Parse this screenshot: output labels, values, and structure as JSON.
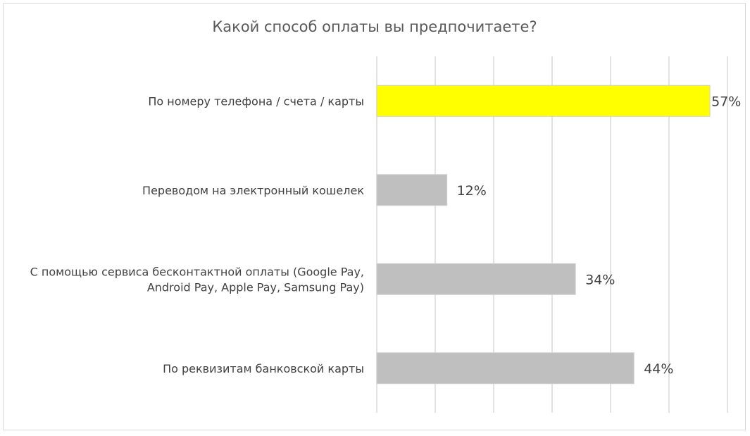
{
  "chart_data": {
    "type": "bar",
    "orientation": "horizontal",
    "title": "Какой способ оплаты вы предпочитаете?",
    "categories": [
      [
        "По номеру телефона / счета / карты"
      ],
      [
        "Переводом на электронный кошелек"
      ],
      [
        "С помощью сервиса бесконтактной оплаты (Google Pay,",
        "Android Pay, Apple Pay, Samsung Pay)"
      ],
      [
        "По реквизитам банковской карты"
      ]
    ],
    "values": [
      57,
      12,
      34,
      44
    ],
    "value_labels": [
      "57%",
      "12%",
      "34%",
      "44%"
    ],
    "bar_colors": [
      "#ffff00",
      "#bfbfbf",
      "#bfbfbf",
      "#bfbfbf"
    ],
    "xlim": [
      0,
      60
    ],
    "grid": true,
    "legend": "none"
  }
}
